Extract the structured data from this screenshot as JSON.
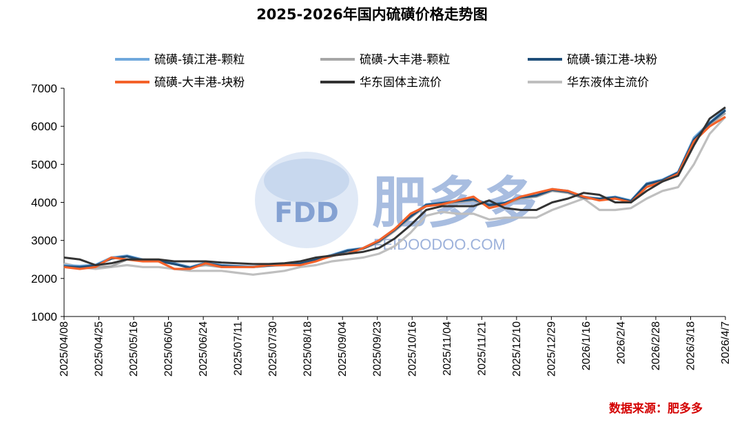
{
  "source_text": "数据来源：肥多多",
  "watermark": {
    "logo": "FDD",
    "brand": "肥多多",
    "url": "FEIDOODOO.COM"
  },
  "colors": {
    "zhenjiang_granule": "#6fa8dc",
    "dafeng_granule": "#a6a6a6",
    "zhenjiang_lump": "#1f4e79",
    "dafeng_lump": "#f4622a",
    "east_solid": "#333333",
    "east_liquid": "#bfbfbf"
  },
  "chart_data": {
    "type": "line",
    "title": "2025-2026年国内硫磺价格走势图",
    "xlabel": "",
    "ylabel": "",
    "ylim": [
      1000,
      7000
    ],
    "yticks": [
      1000,
      2000,
      3000,
      4000,
      5000,
      6000,
      7000
    ],
    "xticks": [
      "2025/04/08",
      "2025/04/25",
      "2025/05/16",
      "2025/06/05",
      "2025/06/24",
      "2025/07/11",
      "2025/07/30",
      "2025/08/18",
      "2025/09/04",
      "2025/09/23",
      "2025/10/16",
      "2025/11/04",
      "2025/11/21",
      "2025/12/10",
      "2025/12/29",
      "2026/1/16",
      "2026/2/4",
      "2026/2/28",
      "2026/3/18",
      "2026/4/7"
    ],
    "grid": false,
    "legend_position": "top",
    "series": [
      {
        "name": "硫磺-镇江港-颗粒",
        "color_key": "zhenjiang_granule",
        "values": [
          2350,
          2330,
          2360,
          2550,
          2600,
          2500,
          2480,
          2400,
          2300,
          2420,
          2350,
          2330,
          2310,
          2350,
          2380,
          2400,
          2500,
          2620,
          2750,
          2800,
          3000,
          3300,
          3650,
          3950,
          4000,
          4050,
          4100,
          3950,
          4000,
          4150,
          4200,
          4350,
          4300,
          4150,
          4100,
          4150,
          4050,
          4500,
          4600,
          4800,
          5700,
          6100,
          6450
        ]
      },
      {
        "name": "硫磺-大丰港-颗粒",
        "color_key": "dafeng_granule",
        "values": [
          2300,
          2280,
          2300,
          2320,
          2500,
          2480,
          2450,
          2380,
          2300,
          2350,
          2300,
          2300,
          2300,
          2330,
          2350,
          2380,
          2480,
          2580,
          2700,
          2780,
          2950,
          3250,
          3600,
          3900,
          3950,
          4000,
          4050,
          3900,
          3950,
          4100,
          4150,
          4300,
          4250,
          4100,
          4100,
          4100,
          4050,
          4450,
          4550,
          4750,
          5600,
          6050,
          6350
        ]
      },
      {
        "name": "硫磺-镇江港-块粉",
        "color_key": "zhenjiang_lump",
        "values": [
          2320,
          2300,
          2340,
          2520,
          2580,
          2480,
          2460,
          2380,
          2280,
          2400,
          2330,
          2310,
          2300,
          2340,
          2370,
          2390,
          2490,
          2600,
          2730,
          2790,
          2980,
          3280,
          3630,
          3930,
          3980,
          4030,
          4080,
          3930,
          3980,
          4130,
          4180,
          4330,
          4280,
          4130,
          4090,
          4130,
          4030,
          4480,
          4580,
          4780,
          5650,
          6080,
          6420
        ]
      },
      {
        "name": "硫磺-大丰港-块粉",
        "color_key": "dafeng_lump",
        "values": [
          2300,
          2250,
          2300,
          2550,
          2500,
          2450,
          2450,
          2250,
          2250,
          2400,
          2300,
          2300,
          2300,
          2350,
          2350,
          2350,
          2450,
          2600,
          2650,
          2800,
          3000,
          3300,
          3700,
          3900,
          3950,
          4050,
          4150,
          3850,
          3950,
          4150,
          4250,
          4350,
          4300,
          4150,
          4050,
          4100,
          4000,
          4400,
          4550,
          4750,
          5600,
          6000,
          6250
        ]
      },
      {
        "name": "华东固体主流价",
        "color_key": "east_solid",
        "values": [
          2550,
          2500,
          2350,
          2400,
          2500,
          2500,
          2500,
          2450,
          2450,
          2450,
          2420,
          2400,
          2380,
          2380,
          2400,
          2450,
          2550,
          2600,
          2650,
          2700,
          2800,
          3050,
          3400,
          3800,
          3900,
          3900,
          3900,
          4050,
          3850,
          3800,
          3800,
          4000,
          4100,
          4250,
          4200,
          4000,
          4000,
          4300,
          4550,
          4700,
          5500,
          6200,
          6500
        ]
      },
      {
        "name": "华东液体主流价",
        "color_key": "east_liquid",
        "values": [
          2400,
          2300,
          2250,
          2300,
          2350,
          2300,
          2300,
          2250,
          2200,
          2200,
          2200,
          2150,
          2100,
          2150,
          2200,
          2300,
          2350,
          2450,
          2500,
          2550,
          2650,
          2850,
          3200,
          3650,
          3750,
          3700,
          3700,
          3550,
          3600,
          3600,
          3600,
          3800,
          3950,
          4100,
          3800,
          3800,
          3850,
          4100,
          4300,
          4400,
          5000,
          5800,
          6250
        ]
      }
    ]
  }
}
